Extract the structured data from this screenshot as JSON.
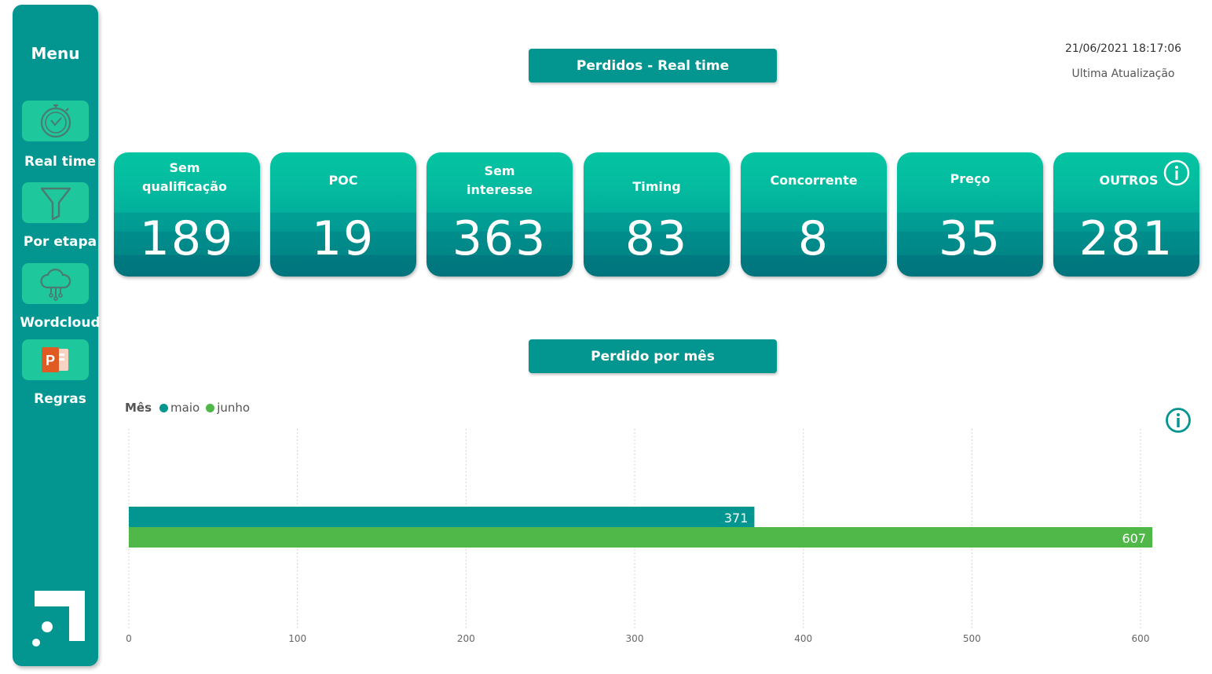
{
  "sidebar": {
    "title": "Menu",
    "items": [
      {
        "label": "Real time",
        "icon": "stopwatch-icon"
      },
      {
        "label": "Por etapa",
        "icon": "funnel-icon"
      },
      {
        "label": "Wordcloud",
        "icon": "cloud-icon"
      },
      {
        "label": "Regras",
        "icon": "powerpoint-icon"
      }
    ]
  },
  "header": {
    "title": "Perdidos - Real time",
    "timestamp": "21/06/2021 18:17:06",
    "timestamp_label": "Ultima Atualização"
  },
  "cards": [
    {
      "label": "Sem qualificação",
      "value": "189"
    },
    {
      "label": "POC",
      "value": "19"
    },
    {
      "label": "Sem interesse",
      "value": "363"
    },
    {
      "label": "Timing",
      "value": "83"
    },
    {
      "label": "Concorrente",
      "value": "8"
    },
    {
      "label": "Preço",
      "value": "35"
    },
    {
      "label": "OUTROS",
      "value": "281"
    }
  ],
  "section2": {
    "title": "Perdido por mês"
  },
  "colors": {
    "teal": "#039590",
    "green": "#4fb848",
    "card_top": "#04c4a1"
  },
  "chart_data": {
    "type": "bar",
    "orientation": "horizontal",
    "legend_title": "Mês",
    "legend_placement": "top-left",
    "series": [
      {
        "name": "maio",
        "values": [
          371
        ],
        "color": "#039590"
      },
      {
        "name": "junho",
        "values": [
          607
        ],
        "color": "#4fb848"
      }
    ],
    "xlim": [
      0,
      600
    ],
    "xticks": [
      "0",
      "100",
      "200",
      "300",
      "400",
      "500",
      "600"
    ],
    "grid": true
  }
}
